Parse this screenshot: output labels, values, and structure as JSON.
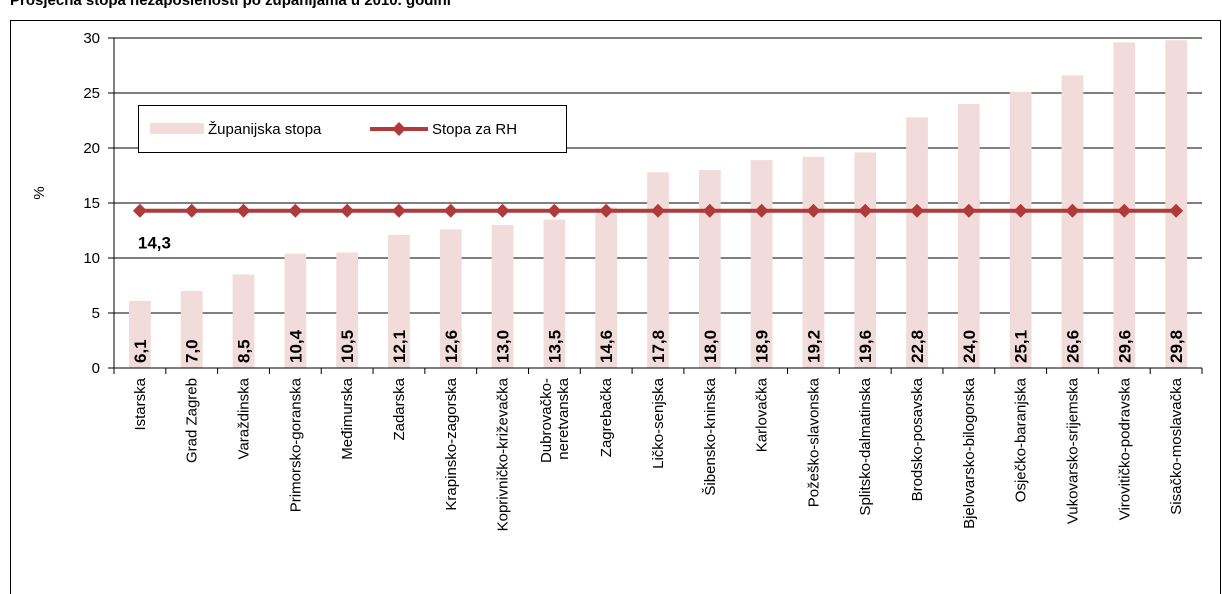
{
  "title": "Prosječna stopa nezaposlenosti po županijama u 2010. godini",
  "chart_data": {
    "type": "bar",
    "categories": [
      "Istarska",
      "Grad Zagreb",
      "Varaždinska",
      "Primorsko-goranska",
      "Međimurska",
      "Zadarska",
      "Krapinsko-zagorska",
      "Koprivničko-križevačka",
      "Dubrovačko-neretvanska",
      "Zagrebačka",
      "Ličko-senjska",
      "Šibensko-kninska",
      "Karlovačka",
      "Požeško-slavonska",
      "Splitsko-dalmatinska",
      "Brodsko-posavska",
      "Bjelovarsko-bilogorska",
      "Osječko-baranjska",
      "Vukovarsko-srijemska",
      "Virovitičko-podravska",
      "Sisačko-moslavačka"
    ],
    "category_labels": [
      [
        "Istarska"
      ],
      [
        "Grad Zagreb"
      ],
      [
        "Varaždinska"
      ],
      [
        "Primorsko-goranska"
      ],
      [
        "Međimurska"
      ],
      [
        "Zadarska"
      ],
      [
        "Krapinsko-zagorska"
      ],
      [
        "Koprivničko-križevačka"
      ],
      [
        "Dubrovačko-",
        "neretvanska"
      ],
      [
        "Zagrebačka"
      ],
      [
        "Ličko-senjska"
      ],
      [
        "Šibensko-kninska"
      ],
      [
        "Karlovačka"
      ],
      [
        "Požeško-slavonska"
      ],
      [
        "Splitsko-dalmatinska"
      ],
      [
        "Brodsko-posavska"
      ],
      [
        "Bjelovarsko-bilogorska"
      ],
      [
        "Osječko-baranjska"
      ],
      [
        "Vukovarsko-srijemska"
      ],
      [
        "Virovitičko-podravska"
      ],
      [
        "Sisačko-moslavačka"
      ]
    ],
    "series": [
      {
        "name": "Županijska stopa",
        "kind": "bar",
        "color": "#f2dcdb",
        "values": [
          6.1,
          7.0,
          8.5,
          10.4,
          10.5,
          12.1,
          12.6,
          13.0,
          13.5,
          14.6,
          17.8,
          18.0,
          18.9,
          19.2,
          19.6,
          22.8,
          24.0,
          25.1,
          26.6,
          29.6,
          29.8
        ],
        "data_labels": [
          "6,1",
          "7,0",
          "8,5",
          "10,4",
          "10,5",
          "12,1",
          "12,6",
          "13,0",
          "13,5",
          "14,6",
          "17,8",
          "18,0",
          "18,9",
          "19,2",
          "19,6",
          "22,8",
          "24,0",
          "25,1",
          "26,6",
          "29,6",
          "29,8"
        ]
      },
      {
        "name": "Stopa za RH",
        "kind": "line",
        "color": "#b03a3a",
        "marker": "diamond",
        "value": 14.3,
        "data_label": "14,3"
      }
    ],
    "ylabel": "%",
    "xlabel": "",
    "ylim": [
      0,
      30
    ],
    "yticks": [
      0,
      5,
      10,
      15,
      20,
      25,
      30
    ],
    "grid": true,
    "legend": "upper-left"
  }
}
